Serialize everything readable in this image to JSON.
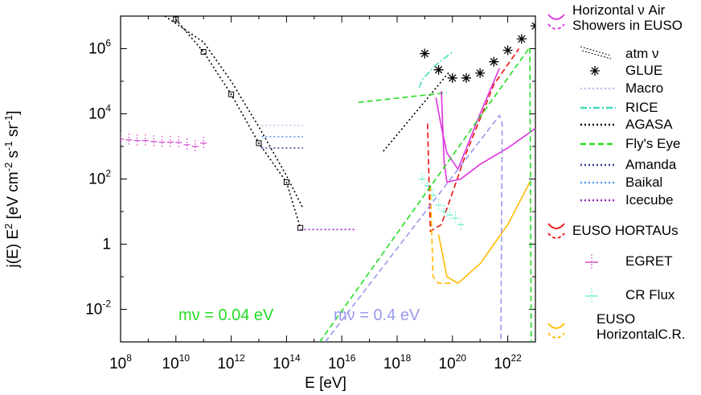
{
  "chart_data": {
    "type": "line",
    "xlabel": "E [eV]",
    "ylabel": "j(E) E2 [eV cm-2 s-1 sr-1]",
    "xscale": "log",
    "yscale": "log",
    "xlim_log10": [
      8,
      23
    ],
    "ylim_log10": [
      -3,
      7
    ],
    "x_ticks": [
      {
        "base": "10",
        "exp": "8"
      },
      {
        "base": "10",
        "exp": "10"
      },
      {
        "base": "10",
        "exp": "12"
      },
      {
        "base": "10",
        "exp": "14"
      },
      {
        "base": "10",
        "exp": "16"
      },
      {
        "base": "10",
        "exp": "18"
      },
      {
        "base": "10",
        "exp": "20"
      },
      {
        "base": "10",
        "exp": "22"
      }
    ],
    "y_ticks": [
      {
        "base": "10",
        "exp": "6",
        "value": 6
      },
      {
        "base": "10",
        "exp": "4",
        "value": 4
      },
      {
        "base": "10",
        "exp": "2",
        "value": 2
      },
      {
        "base": "1",
        "exp": "",
        "value": 0
      },
      {
        "base": "10",
        "exp": "-2",
        "value": -2
      }
    ],
    "ylabel_parts": {
      "a": "j(E) E",
      "a_sup": "2",
      "b": " [eV cm",
      "b_sup": "-2",
      "c": " s",
      "c_sup": "-1",
      "d": " sr",
      "d_sup": "-1",
      "e": "]"
    },
    "annotations": [
      {
        "text": "mν = 0.04 eV",
        "color": "#22dd22"
      },
      {
        "text": "mν = 0.4 eV",
        "color": "#9999ee"
      }
    ],
    "series": [
      {
        "name": "atm ν",
        "color": "#000000",
        "style": "dotted-marker",
        "x": [
          10,
          11,
          12,
          13,
          14,
          14.5
        ],
        "y": [
          6.9,
          5.9,
          4.6,
          3.1,
          1.9,
          0.5
        ]
      },
      {
        "name": "atm ν (upper)",
        "color": "#000000",
        "style": "dotted",
        "x": [
          9.6,
          11,
          12,
          13,
          14,
          14.6
        ],
        "y": [
          7.0,
          6.2,
          5.0,
          3.6,
          2.1,
          1.1
        ]
      },
      {
        "name": "GLUE",
        "color": "#000000",
        "style": "star",
        "x": [
          19.0,
          19.5,
          20.0,
          20.5,
          21.0,
          21.5,
          22.0,
          22.5,
          23.0
        ],
        "y": [
          5.85,
          5.35,
          5.1,
          5.1,
          5.25,
          5.6,
          5.95,
          6.3,
          6.7
        ]
      },
      {
        "name": "Macro",
        "color": "#bbbbee",
        "style": "dotted",
        "x": [
          13.1,
          14.6
        ],
        "y": [
          3.65,
          3.65
        ]
      },
      {
        "name": "RICE",
        "color": "#44ddbb",
        "style": "dashdot",
        "x": [
          18.8,
          18.9,
          19.4,
          20.0
        ],
        "y": [
          4.8,
          5.05,
          5.5,
          5.9
        ]
      },
      {
        "name": "AGASA",
        "color": "#000000",
        "style": "dotted",
        "x": [
          17.5,
          19.9
        ],
        "y": [
          2.85,
          5.3
        ]
      },
      {
        "name": "Fly's Eye",
        "color": "#22dd22",
        "style": "dashed",
        "x": [
          16.6,
          19.8
        ],
        "y": [
          4.35,
          4.65
        ]
      },
      {
        "name": "Amanda",
        "color": "#334499",
        "style": "dotted",
        "x": [
          13.1,
          14.6
        ],
        "y": [
          2.95,
          2.95
        ]
      },
      {
        "name": "Baikal",
        "color": "#5599ee",
        "style": "dotted",
        "x": [
          13.1,
          14.6
        ],
        "y": [
          3.3,
          3.3
        ]
      },
      {
        "name": "Icecube",
        "color": "#9922bb",
        "style": "dotted",
        "x": [
          14.5,
          16.5
        ],
        "y": [
          0.45,
          0.45
        ]
      },
      {
        "name": "Horizontal ν Air Showers in EUSO",
        "color": "#dd33dd",
        "style": "solid",
        "x": [
          19.6,
          19.7,
          19.8,
          20.3,
          21.0,
          22.0,
          23.0
        ],
        "y": [
          4.7,
          2.5,
          1.9,
          2.0,
          2.45,
          2.95,
          3.55
        ]
      },
      {
        "name": "Horizontal ν Air Showers in EUSO (2)",
        "color": "#dd33dd",
        "style": "solid",
        "x": [
          19.4,
          19.6,
          19.8,
          20.2,
          21.0,
          21.7
        ],
        "y": [
          4.5,
          3.6,
          2.8,
          2.3,
          4.0,
          5.4
        ]
      },
      {
        "name": "EUSO HORTAUs",
        "color": "#ee1111",
        "style": "dashed",
        "x": [
          19.1,
          19.2,
          19.6,
          20.5,
          21.5,
          22.4
        ],
        "y": [
          3.7,
          0.4,
          0.6,
          2.8,
          4.9,
          6.0
        ]
      },
      {
        "name": "EGRET",
        "color": "#cc44cc",
        "style": "errorbar",
        "x": [
          8.0,
          8.3,
          8.6,
          8.9,
          9.2,
          9.5,
          9.8,
          10.1,
          10.4,
          10.7,
          11.0
        ],
        "y": [
          3.22,
          3.2,
          3.18,
          3.18,
          3.15,
          3.13,
          3.13,
          3.12,
          3.05,
          3.0,
          3.1
        ]
      },
      {
        "name": "CR Flux",
        "color": "#66eecc",
        "style": "errorbar",
        "x": [
          18.9,
          19.1,
          19.3,
          19.5,
          19.7,
          19.9,
          20.1,
          20.3
        ],
        "y": [
          2.0,
          1.8,
          1.5,
          1.2,
          1.0,
          0.9,
          0.8,
          0.6
        ]
      },
      {
        "name": "EUSO HorizontalC.R.",
        "color": "#ffbb00",
        "style": "solid",
        "x": [
          19.5,
          19.8,
          20.2,
          21.0,
          22.0,
          22.8
        ],
        "y": [
          0.3,
          -1.0,
          -1.2,
          -0.6,
          0.6,
          1.9
        ]
      },
      {
        "name": "EUSO HorizontalC.R. (dashed)",
        "color": "#ffbb00",
        "style": "dashed",
        "x": [
          19.2,
          19.3,
          19.5,
          20.0
        ],
        "y": [
          1.8,
          -1.0,
          -1.2,
          -1.2
        ]
      },
      {
        "name": "mν = 0.04 eV",
        "color": "#22dd22",
        "style": "dashed",
        "x": [
          15.2,
          22.8,
          22.85
        ],
        "y": [
          -3.0,
          6.05,
          -3.0
        ]
      },
      {
        "name": "mν = 0.4 eV",
        "color": "#9999ee",
        "style": "dashed",
        "x": [
          15.4,
          21.7,
          21.8,
          21.75
        ],
        "y": [
          -3.0,
          3.95,
          3.7,
          -3.0
        ]
      }
    ],
    "legend": [
      {
        "label_lines": [
          "Horizontal    ν Air",
          "Showers in EUSO"
        ],
        "color": "#dd33dd",
        "swatch": "curve"
      },
      {
        "label_lines": [
          "atm ν"
        ],
        "color": "#000000",
        "swatch": "atm"
      },
      {
        "label_lines": [
          "GLUE"
        ],
        "color": "#000000",
        "swatch": "star"
      },
      {
        "label_lines": [
          "Macro"
        ],
        "color": "#bbbbee",
        "swatch": "dotted"
      },
      {
        "label_lines": [
          "RICE"
        ],
        "color": "#44ddbb",
        "swatch": "dashdot"
      },
      {
        "label_lines": [
          "AGASA"
        ],
        "color": "#000000",
        "swatch": "dotted"
      },
      {
        "label_lines": [
          "Fly's Eye"
        ],
        "color": "#22dd22",
        "swatch": "dashed"
      },
      {
        "label_lines": [
          "Amanda"
        ],
        "color": "#334499",
        "swatch": "dotted"
      },
      {
        "label_lines": [
          "Baikal"
        ],
        "color": "#5599ee",
        "swatch": "dotted"
      },
      {
        "label_lines": [
          "Icecube"
        ],
        "color": "#9922bb",
        "swatch": "dotted"
      },
      {
        "label_lines": [
          "EUSO HORTAUs"
        ],
        "color": "#ee1111",
        "swatch": "curve"
      },
      {
        "label_lines": [
          "EGRET"
        ],
        "color": "#cc44cc",
        "swatch": "errorbar"
      },
      {
        "label_lines": [
          "CR Flux"
        ],
        "color": "#66eecc",
        "swatch": "errorbar"
      },
      {
        "label_lines": [
          "EUSO",
          "HorizontalC.R."
        ],
        "color": "#ffbb00",
        "swatch": "curve"
      }
    ]
  }
}
